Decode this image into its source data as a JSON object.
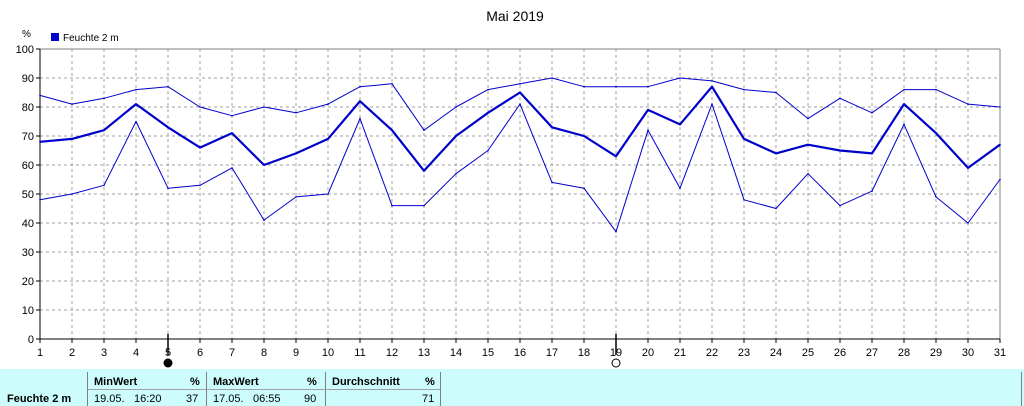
{
  "chart_data": {
    "type": "line",
    "title": "Mai 2019",
    "ylabel": "%",
    "ylim": [
      0,
      100
    ],
    "yticks": [
      0,
      10,
      20,
      30,
      40,
      50,
      60,
      70,
      80,
      90,
      100
    ],
    "x": [
      1,
      2,
      3,
      4,
      5,
      6,
      7,
      8,
      9,
      10,
      11,
      12,
      13,
      14,
      15,
      16,
      17,
      18,
      19,
      20,
      21,
      22,
      23,
      24,
      25,
      26,
      27,
      28,
      29,
      30,
      31
    ],
    "grid": true,
    "legend": "top-left",
    "legend_label": "Feuchte  2 m",
    "series": [
      {
        "name": "Feuchte  2 m",
        "role": "mean",
        "color": "#0000cc",
        "values": [
          68,
          69,
          72,
          81,
          73,
          66,
          71,
          60,
          64,
          69,
          82,
          72,
          58,
          70,
          78,
          85,
          73,
          70,
          63,
          79,
          74,
          87,
          69,
          64,
          67,
          65,
          64,
          81,
          71,
          59,
          67
        ]
      },
      {
        "role": "max",
        "color": "#0000cc",
        "values": [
          84,
          81,
          83,
          86,
          87,
          80,
          77,
          80,
          78,
          81,
          87,
          88,
          72,
          80,
          86,
          88,
          90,
          87,
          87,
          87,
          90,
          89,
          86,
          85,
          76,
          83,
          78,
          86,
          86,
          81,
          80
        ]
      },
      {
        "role": "min",
        "color": "#0000cc",
        "values": [
          48,
          50,
          53,
          75,
          52,
          53,
          59,
          41,
          49,
          50,
          76,
          46,
          46,
          57,
          65,
          81,
          54,
          52,
          37,
          72,
          52,
          81,
          48,
          45,
          57,
          46,
          51,
          74,
          49,
          40,
          55
        ]
      }
    ],
    "moon_phases": [
      {
        "day": 5,
        "phase": "new-moon"
      },
      {
        "day": 19,
        "phase": "full-moon"
      }
    ]
  },
  "summary": {
    "row_label": "Feuchte  2 m",
    "min": {
      "header": "MinWert",
      "unit": "%",
      "date": "19.05.",
      "time": "16:20",
      "value": "37"
    },
    "max": {
      "header": "MaxWert",
      "unit": "%",
      "date": "17.05.",
      "time": "06:55",
      "value": "90"
    },
    "avg": {
      "header": "Durchschnitt",
      "unit": "%",
      "value": "71"
    }
  },
  "colors": {
    "series": "#0000cc",
    "table_bg": "#ccfcfc",
    "grid": "#a0a0a0"
  }
}
